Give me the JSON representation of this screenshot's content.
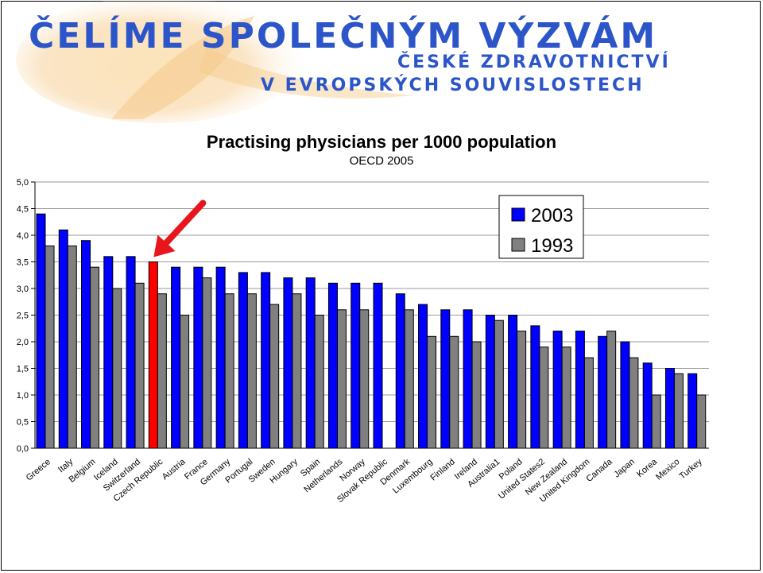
{
  "banner": {
    "line1": "ČELÍME SPOLEČNÝM VÝZVÁM",
    "line2": "ČESKÉ ZDRAVOTNICTVÍ",
    "line3": "V EVROPSKÝCH SOUVISLOSTECH",
    "color": "#2b55c8"
  },
  "chart_data": {
    "type": "bar",
    "title": "Practising physicians per 1000 population",
    "subtitle": "OECD 2005",
    "xlabel": "",
    "ylabel": "",
    "ylim": [
      0,
      5
    ],
    "yticks": [
      "0,0",
      "0,5",
      "1,0",
      "1,5",
      "2,0",
      "2,5",
      "3,0",
      "3,5",
      "4,0",
      "4,5",
      "5,0"
    ],
    "grid": true,
    "legend_position": "top-right",
    "highlight": {
      "category": "Czech Republic",
      "color": "#ff0000",
      "arrow_color": "#e8161c"
    },
    "categories": [
      "Greece",
      "Italy",
      "Belgium",
      "Iceland",
      "Switzerland",
      "Czech Republic",
      "Austria",
      "France",
      "Germany",
      "Portugal",
      "Sweden",
      "Hungary",
      "Spain",
      "Netherlands",
      "Norway",
      "Slovak Republic",
      "Denmark",
      "Luxembourg",
      "Finland",
      "Ireland",
      "Australia1",
      "Poland",
      "United States2",
      "New Zealand",
      "United Kingdom",
      "Canada",
      "Japan",
      "Korea",
      "Mexico",
      "Turkey"
    ],
    "series": [
      {
        "name": "2003",
        "color": "#0000ff",
        "values": [
          4.4,
          4.1,
          3.9,
          3.6,
          3.6,
          3.5,
          3.4,
          3.4,
          3.4,
          3.3,
          3.3,
          3.2,
          3.2,
          3.1,
          3.1,
          3.1,
          2.9,
          2.7,
          2.6,
          2.6,
          2.5,
          2.5,
          2.3,
          2.2,
          2.2,
          2.1,
          2.0,
          1.6,
          1.5,
          1.4
        ]
      },
      {
        "name": "1993",
        "color": "#808080",
        "values": [
          3.8,
          3.8,
          3.4,
          3.0,
          3.1,
          2.9,
          2.5,
          3.2,
          2.9,
          2.9,
          2.7,
          2.9,
          2.5,
          2.6,
          2.6,
          null,
          2.6,
          2.1,
          2.1,
          2.0,
          2.4,
          2.2,
          1.9,
          1.9,
          1.7,
          2.2,
          1.7,
          1.0,
          1.4,
          1.0
        ]
      }
    ]
  }
}
